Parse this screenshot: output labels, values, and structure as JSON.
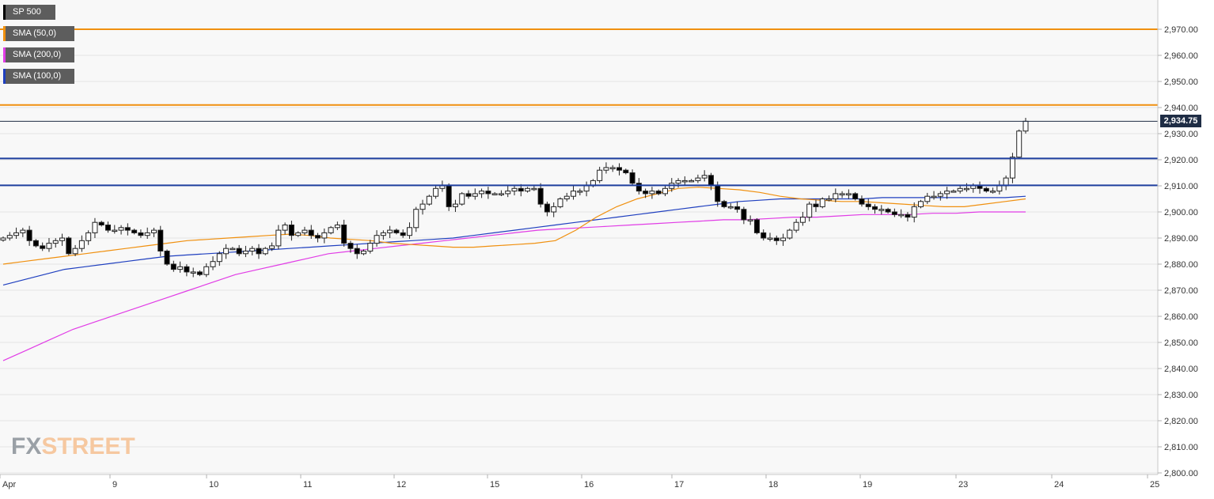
{
  "chart_data": {
    "type": "candlestick",
    "instrument": "SP 500",
    "ylim": [
      2800,
      2980
    ],
    "y_ticks": [
      "2,800.00",
      "2,810.00",
      "2,820.00",
      "2,830.00",
      "2,840.00",
      "2,850.00",
      "2,860.00",
      "2,870.00",
      "2,880.00",
      "2,890.00",
      "2,900.00",
      "2,910.00",
      "2,920.00",
      "2,930.00",
      "2,940.00",
      "2,950.00",
      "2,960.00",
      "2,970.00"
    ],
    "x_ticks": [
      "Apr",
      "9",
      "10",
      "11",
      "12",
      "15",
      "16",
      "17",
      "18",
      "19",
      "23",
      "24",
      "25"
    ],
    "last_price": 2934.75,
    "last_price_label": "2,934.75",
    "legend": [
      {
        "label": "SP 500",
        "color": "#000000"
      },
      {
        "label": "SMA (50,0)",
        "color": "#f0900f"
      },
      {
        "label": "SMA (200,0)",
        "color": "#e13ce6"
      },
      {
        "label": "SMA (100,0)",
        "color": "#1f3fbf"
      }
    ],
    "horizontal_levels": [
      {
        "value": 2970,
        "color": "#f0900f"
      },
      {
        "value": 2941,
        "color": "#f0900f"
      },
      {
        "value": 2920.5,
        "color": "#1f3f9f"
      },
      {
        "value": 2910.2,
        "color": "#1f3f9f"
      }
    ],
    "close_series": [
      2890,
      2891,
      2892,
      2893,
      2889,
      2887,
      2886,
      2888,
      2889,
      2890,
      2884,
      2886,
      2889,
      2892,
      2896,
      2895,
      2893,
      2893,
      2894,
      2893,
      2892,
      2891,
      2892,
      2893,
      2885,
      2880,
      2878,
      2879,
      2877,
      2877,
      2876,
      2879,
      2881,
      2884,
      2886,
      2886,
      2884,
      2885,
      2886,
      2884,
      2886,
      2887,
      2893,
      2895,
      2891,
      2892,
      2893,
      2891,
      2890,
      2892,
      2894,
      2895,
      2888,
      2886,
      2884,
      2885,
      2888,
      2891,
      2892,
      2893,
      2892,
      2891,
      2894,
      2901,
      2903,
      2906,
      2909,
      2910,
      2902,
      2903,
      2907,
      2906,
      2907,
      2908,
      2907,
      2907,
      2907,
      2908,
      2909,
      2908,
      2909,
      2909,
      2903,
      2900,
      2902,
      2905,
      2906,
      2908,
      2908,
      2910,
      2912,
      2916,
      2917,
      2917,
      2916,
      2915,
      2911,
      2908,
      2907,
      2908,
      2907,
      2909,
      2911,
      2912,
      2912,
      2912,
      2913,
      2914,
      2910,
      2904,
      2902,
      2902,
      2901,
      2897,
      2897,
      2892,
      2890,
      2890,
      2889,
      2890,
      2893,
      2896,
      2898,
      2903,
      2902,
      2905,
      2905,
      2907,
      2907,
      2907,
      2905,
      2903,
      2902,
      2901,
      2901,
      2900,
      2899,
      2899,
      2898,
      2902,
      2904,
      2906,
      2906,
      2907,
      2908,
      2908,
      2909,
      2909,
      2910,
      2909,
      2908,
      2908,
      2910,
      2913,
      2921,
      2931,
      2934.75
    ],
    "sma_50": [
      2880,
      2881,
      2882,
      2883,
      2884,
      2885,
      2886,
      2887,
      2888,
      2889,
      2889.5,
      2890,
      2890.5,
      2891,
      2891.5,
      2891,
      2890,
      2889.5,
      2889,
      2888,
      2887.5,
      2887,
      2886.5,
      2886.5,
      2887,
      2887.5,
      2888,
      2889,
      2893,
      2898,
      2902,
      2905,
      2907,
      2909,
      2909.5,
      2909,
      2908.5,
      2907.5,
      2906,
      2905,
      2904.5,
      2904,
      2904,
      2903.5,
      2903,
      2902.5,
      2902,
      2902,
      2903,
      2904,
      2905
    ],
    "sma_100": [
      2872,
      2874,
      2876,
      2878,
      2879,
      2880,
      2881,
      2882,
      2883,
      2883.5,
      2884,
      2884.5,
      2885,
      2885.5,
      2886,
      2886.5,
      2887,
      2887.5,
      2888,
      2888.5,
      2889,
      2889.5,
      2890,
      2891,
      2892,
      2893,
      2894,
      2895,
      2896,
      2897,
      2898,
      2899,
      2900,
      2901,
      2902,
      2903,
      2904,
      2904.5,
      2905,
      2905,
      2905,
      2905,
      2905,
      2905.5,
      2905.5,
      2905.5,
      2905.5,
      2905.5,
      2905.5,
      2905.5,
      2906
    ],
    "sma_200": [
      2843,
      2847,
      2851,
      2855,
      2858,
      2861,
      2864,
      2867,
      2870,
      2873,
      2876,
      2878,
      2880,
      2882,
      2884,
      2885,
      2886,
      2887,
      2888,
      2889,
      2890,
      2891,
      2892,
      2893,
      2893.5,
      2894,
      2894.5,
      2895,
      2895.5,
      2896,
      2896.5,
      2897,
      2897,
      2897.5,
      2898,
      2898,
      2898.5,
      2899,
      2899,
      2899,
      2899.5,
      2899.5,
      2900,
      2900,
      2900
    ]
  },
  "watermark": {
    "part1": "FX",
    "part2": "STREET"
  }
}
